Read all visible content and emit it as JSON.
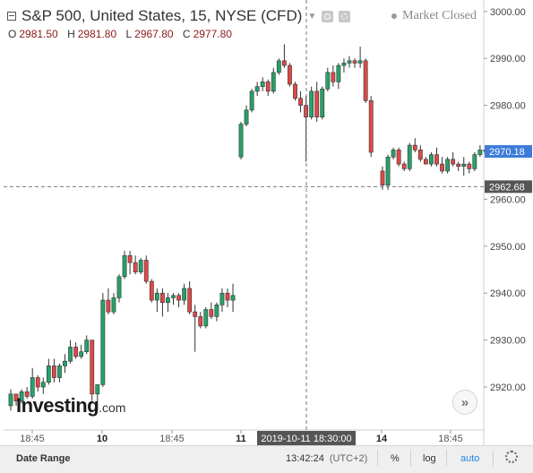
{
  "header": {
    "title": "S&P 500, United States, 15, NYSE (CFD)",
    "market_status": "Market Closed",
    "ohlc": {
      "o_key": "O",
      "o_val": "2981.50",
      "h_key": "H",
      "h_val": "2981.80",
      "l_key": "L",
      "l_val": "2967.80",
      "c_key": "C",
      "c_val": "2977.80"
    }
  },
  "logo": {
    "word": "Investing",
    "suffix": ".com"
  },
  "bottom_bar": {
    "date_range_label": "Date Range",
    "clock": "13:42:24",
    "timezone": "(UTC+2)",
    "percent_label": "%",
    "log_label": "log",
    "auto_label": "auto"
  },
  "colors": {
    "up": "#26a269",
    "down": "#e04848",
    "price_tag": "#3d7bd9",
    "crosshair_tag": "#555555"
  },
  "chart_data": {
    "type": "candlestick",
    "y_axis": {
      "min": 2912,
      "max": 3001,
      "ticks": [
        2920,
        2930,
        2940,
        2950,
        2960,
        2970,
        2980,
        2990,
        3000
      ],
      "tick_labels": [
        "2920.00",
        "2930.00",
        "2940.00",
        "2950.00",
        "2960.00",
        "2970.00",
        "2980.00",
        "2990.00",
        "3000.00"
      ]
    },
    "x_axis": {
      "tick_labels": [
        "18:45",
        "10",
        "18:45",
        "11",
        "14",
        "18:45"
      ],
      "crosshair_label": "2019-10-11 18:30:00"
    },
    "last_price": {
      "value": 2970.18,
      "label": "2970.18"
    },
    "crosshair_price": {
      "value": 2962.68,
      "label": "2962.68"
    },
    "groups": [
      {
        "ohlc": [
          [
            2916,
            2919.5,
            2915,
            2918.5
          ],
          [
            2918.5,
            2918.5,
            2916,
            2917
          ],
          [
            2917,
            2919.5,
            2916.5,
            2919
          ],
          [
            2919,
            2920,
            2917.5,
            2918
          ],
          [
            2918,
            2924,
            2917.5,
            2922
          ],
          [
            2922,
            2922.5,
            2919,
            2920
          ],
          [
            2920,
            2922,
            2918.5,
            2921
          ],
          [
            2921,
            2926,
            2920.5,
            2924.5
          ],
          [
            2924.5,
            2926,
            2921,
            2922
          ],
          [
            2922,
            2925,
            2921,
            2924.5
          ],
          [
            2924.5,
            2927,
            2923,
            2925.5
          ],
          [
            2925.5,
            2930,
            2925,
            2928.5
          ],
          [
            2928.5,
            2929.5,
            2926,
            2926.5
          ],
          [
            2926.5,
            2929,
            2926,
            2927.5
          ],
          [
            2927.5,
            2931,
            2927,
            2930
          ],
          [
            2930,
            2930,
            2917,
            2918.5
          ],
          [
            2918.5,
            2920.5,
            2915,
            2920.5
          ],
          [
            2920.5,
            2940,
            2920,
            2938.5
          ],
          [
            2938.5,
            2941,
            2935.5,
            2936
          ],
          [
            2936,
            2940,
            2935.5,
            2939
          ],
          [
            2939,
            2944,
            2938,
            2943.5
          ],
          [
            2943.5,
            2949,
            2943,
            2948
          ],
          [
            2948,
            2949,
            2944,
            2946.5
          ],
          [
            2946.5,
            2948,
            2944,
            2944.5
          ],
          [
            2944.5,
            2947.5,
            2944,
            2947
          ],
          [
            2947,
            2948,
            2942,
            2942.5
          ],
          [
            2942.5,
            2943,
            2938,
            2938.5
          ],
          [
            2938.5,
            2941,
            2936,
            2940
          ],
          [
            2940,
            2941,
            2935,
            2938
          ],
          [
            2938,
            2940,
            2936,
            2939
          ],
          [
            2939,
            2940,
            2937.5,
            2939.5
          ],
          [
            2939.5,
            2940,
            2937,
            2938.5
          ],
          [
            2938.5,
            2942,
            2937.5,
            2941
          ],
          [
            2941,
            2942.5,
            2935.5,
            2936
          ],
          [
            2936,
            2937.5,
            2927.5,
            2935
          ],
          [
            2935,
            2936,
            2932.5,
            2933
          ],
          [
            2933,
            2937,
            2932.5,
            2936.5
          ],
          [
            2936.5,
            2938,
            2934.5,
            2935
          ],
          [
            2935,
            2938,
            2934,
            2937.5
          ],
          [
            2937.5,
            2941,
            2936,
            2940
          ],
          [
            2940,
            2941,
            2937,
            2938.5
          ],
          [
            2938.5,
            2942,
            2936,
            2939.5
          ]
        ]
      },
      {
        "ohlc": [
          [
            2969,
            2976.5,
            2968.5,
            2976
          ],
          [
            2976,
            2980,
            2975.5,
            2979
          ],
          [
            2979,
            2983.5,
            2978.5,
            2983
          ],
          [
            2983,
            2985,
            2982,
            2984
          ],
          [
            2984,
            2986,
            2983,
            2985
          ],
          [
            2985,
            2985.5,
            2982,
            2983
          ],
          [
            2983,
            2988,
            2982.5,
            2987
          ],
          [
            2987,
            2990,
            2986.5,
            2989.5
          ],
          [
            2989.5,
            2993,
            2988,
            2988.5
          ],
          [
            2988.5,
            2989,
            2984,
            2984.5
          ],
          [
            2984.5,
            2985,
            2981,
            2981.5
          ],
          [
            2981.5,
            2983,
            2978.5,
            2980
          ],
          [
            2980,
            2982,
            2968,
            2977.5
          ],
          [
            2977.5,
            2984,
            2977,
            2983
          ],
          [
            2983,
            2985,
            2976.5,
            2977.5
          ],
          [
            2977.5,
            2984,
            2977,
            2983.5
          ],
          [
            2983.5,
            2988,
            2983,
            2987
          ],
          [
            2987,
            2988.5,
            2984,
            2985
          ],
          [
            2985,
            2989,
            2983.5,
            2988.5
          ],
          [
            2988.5,
            2990,
            2987,
            2989
          ],
          [
            2989,
            2990.5,
            2988,
            2989.5
          ],
          [
            2989.5,
            2990,
            2988,
            2989
          ],
          [
            2989,
            2992.5,
            2988,
            2989.5
          ],
          [
            2989.5,
            2990,
            2980.5,
            2981
          ],
          [
            2981,
            2982,
            2969,
            2970
          ]
        ]
      },
      {
        "ohlc": [
          [
            2966,
            2967,
            2962,
            2963
          ],
          [
            2963,
            2969.5,
            2962,
            2969
          ],
          [
            2969,
            2971,
            2968.5,
            2970.5
          ],
          [
            2970.5,
            2971,
            2967,
            2967.5
          ],
          [
            2967.5,
            2968,
            2966,
            2966.5
          ],
          [
            2966.5,
            2972,
            2966,
            2971.5
          ],
          [
            2971.5,
            2973,
            2970,
            2970.5
          ],
          [
            2970.5,
            2971.5,
            2968,
            2968.5
          ],
          [
            2968.5,
            2969,
            2967.5,
            2967.5
          ],
          [
            2967.5,
            2970,
            2967,
            2969.5
          ],
          [
            2969.5,
            2971,
            2967,
            2967.5
          ],
          [
            2967.5,
            2969,
            2965.5,
            2966
          ],
          [
            2966,
            2969,
            2965.5,
            2968.5
          ],
          [
            2968.5,
            2970,
            2967,
            2967.5
          ],
          [
            2967.5,
            2968,
            2966,
            2967
          ],
          [
            2967,
            2969,
            2965,
            2967.5
          ],
          [
            2967.5,
            2968,
            2965.5,
            2966.5
          ],
          [
            2966.5,
            2970,
            2966,
            2969.5
          ],
          [
            2969.5,
            2971.5,
            2969,
            2970.5
          ],
          [
            2970.5,
            2971,
            2969.5,
            2970.2
          ]
        ]
      }
    ]
  }
}
